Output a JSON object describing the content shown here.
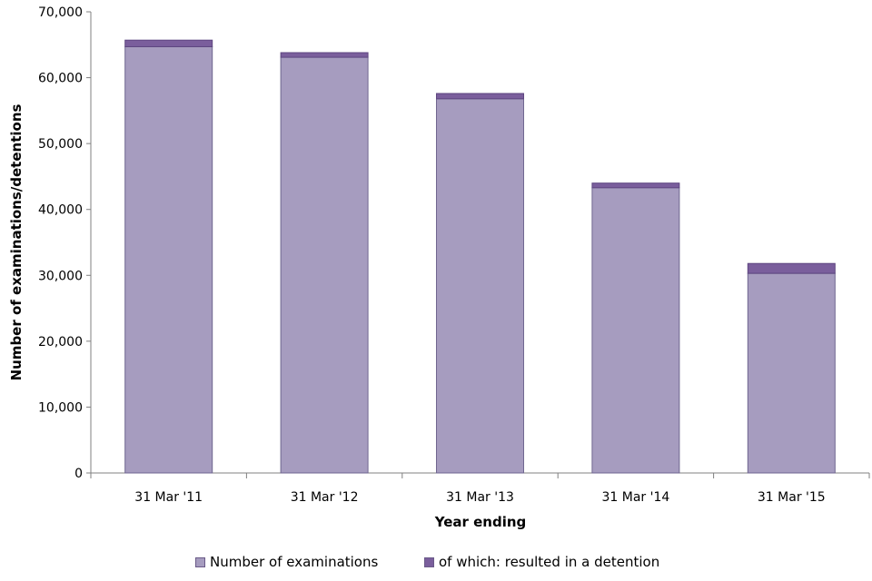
{
  "chart_data": {
    "type": "bar",
    "stacked": true,
    "categories": [
      "31 Mar '11",
      "31 Mar '12",
      "31 Mar '13",
      "31 Mar '14",
      "31 Mar '15"
    ],
    "series": [
      {
        "name": "Number of examinations",
        "values": [
          64700,
          63100,
          56800,
          43300,
          30300
        ],
        "color": "#a69cbf"
      },
      {
        "name": "of which: resulted in a detention",
        "values": [
          1000,
          700,
          800,
          700,
          1500
        ],
        "color": "#7a5e9c"
      }
    ],
    "xlabel": "Year ending",
    "ylabel": "Number of examinations/detentions",
    "ylim": [
      0,
      70000
    ],
    "yticks": [
      0,
      10000,
      20000,
      30000,
      40000,
      50000,
      60000,
      70000
    ],
    "ytick_labels": [
      "0",
      "10,000",
      "20,000",
      "30,000",
      "40,000",
      "50,000",
      "60,000",
      "70,000"
    ],
    "grid": false,
    "legend_position": "bottom"
  }
}
